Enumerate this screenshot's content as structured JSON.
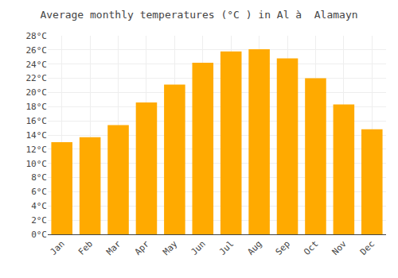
{
  "chart_data": {
    "type": "bar",
    "title": "Average monthly temperatures (°C ) in Al à  Alamayn",
    "categories": [
      "Jan",
      "Feb",
      "Mar",
      "Apr",
      "May",
      "Jun",
      "Jul",
      "Aug",
      "Sep",
      "Oct",
      "Nov",
      "Dec"
    ],
    "values": [
      13.0,
      13.7,
      15.4,
      18.6,
      21.1,
      24.2,
      25.8,
      26.1,
      24.8,
      22.0,
      18.3,
      14.8
    ],
    "color": "#FFAA00",
    "ylim": [
      0,
      28
    ],
    "yticks": [
      {
        "value": 0,
        "label": "0°C"
      },
      {
        "value": 2,
        "label": "2°C"
      },
      {
        "value": 4,
        "label": "4°C"
      },
      {
        "value": 6,
        "label": "6°C"
      },
      {
        "value": 8,
        "label": "8°C"
      },
      {
        "value": 10,
        "label": "10°C"
      },
      {
        "value": 12,
        "label": "12°C"
      },
      {
        "value": 14,
        "label": "14°C"
      },
      {
        "value": 16,
        "label": "16°C"
      },
      {
        "value": 18,
        "label": "18°C"
      },
      {
        "value": 20,
        "label": "20°C"
      },
      {
        "value": 22,
        "label": "22°C"
      },
      {
        "value": 24,
        "label": "24°C"
      },
      {
        "value": 26,
        "label": "26°C"
      },
      {
        "value": 28,
        "label": "28°C"
      }
    ],
    "grid": true
  }
}
